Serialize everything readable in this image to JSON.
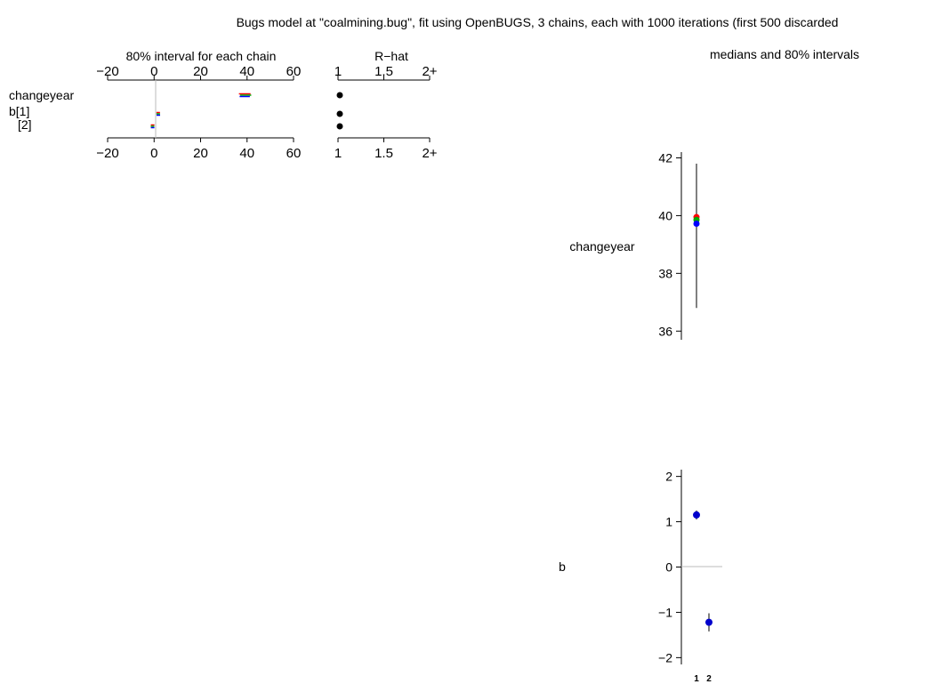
{
  "title": "Bugs model at \"coalmining.bug\", fit using OpenBUGS, 3 chains, each with 1000 iterations (first 500 discarded",
  "colors": {
    "chain1": "#ff0000",
    "chain2": "#00aa00",
    "chain3": "#0000ff",
    "point": "#0000cc",
    "rule": "#bbbbbb"
  },
  "chart_data": [
    {
      "type": "interval",
      "panel": "chain-intervals",
      "title": "80% interval for each chain",
      "xlim": [
        -20,
        60
      ],
      "ticks": [
        -20,
        0,
        20,
        40,
        60
      ],
      "tick_labels": [
        "−20",
        "0",
        "20",
        "40",
        "60"
      ],
      "row_labels": [
        "changeyear",
        "b[1]",
        "[2]"
      ],
      "rows": [
        {
          "chains": [
            [
              36.5,
              41.5
            ],
            [
              37.0,
              41.8
            ],
            [
              36.8,
              41.2
            ]
          ]
        },
        {
          "chains": [
            [
              1.0,
              1.3
            ],
            [
              1.0,
              1.35
            ],
            [
              1.05,
              1.3
            ]
          ]
        },
        {
          "chains": [
            [
              -1.4,
              -1.05
            ],
            [
              -1.45,
              -1.0
            ],
            [
              -1.4,
              -1.1
            ]
          ]
        }
      ]
    },
    {
      "type": "scatter",
      "panel": "rhat",
      "title": "R−hat",
      "xlim": [
        1,
        2
      ],
      "ticks": [
        1,
        1.5,
        2
      ],
      "tick_labels": [
        "1",
        "1.5",
        "2+"
      ],
      "values": [
        1.0,
        1.0,
        1.0
      ]
    },
    {
      "type": "interval",
      "panel": "changeyear",
      "title": "medians and 80% intervals",
      "ylabel": "changeyear",
      "ylim": [
        35.7,
        42.2
      ],
      "ticks": [
        36,
        38,
        40,
        42
      ],
      "tick_labels": [
        "36",
        "38",
        "40",
        "42"
      ],
      "interval": [
        36.8,
        41.8
      ],
      "chain_medians": [
        39.95,
        39.85,
        39.72
      ]
    },
    {
      "type": "interval",
      "panel": "b",
      "ylabel": "b",
      "ylim": [
        -2.15,
        2.15
      ],
      "ticks": [
        -2,
        -1,
        0,
        1,
        2
      ],
      "tick_labels": [
        "−2",
        "−1",
        "0",
        "1",
        "2"
      ],
      "categories": [
        "1",
        "2"
      ],
      "points": [
        {
          "median": 1.15,
          "interval": [
            1.05,
            1.25
          ]
        },
        {
          "median": -1.22,
          "interval": [
            -1.42,
            -1.02
          ]
        }
      ]
    }
  ]
}
